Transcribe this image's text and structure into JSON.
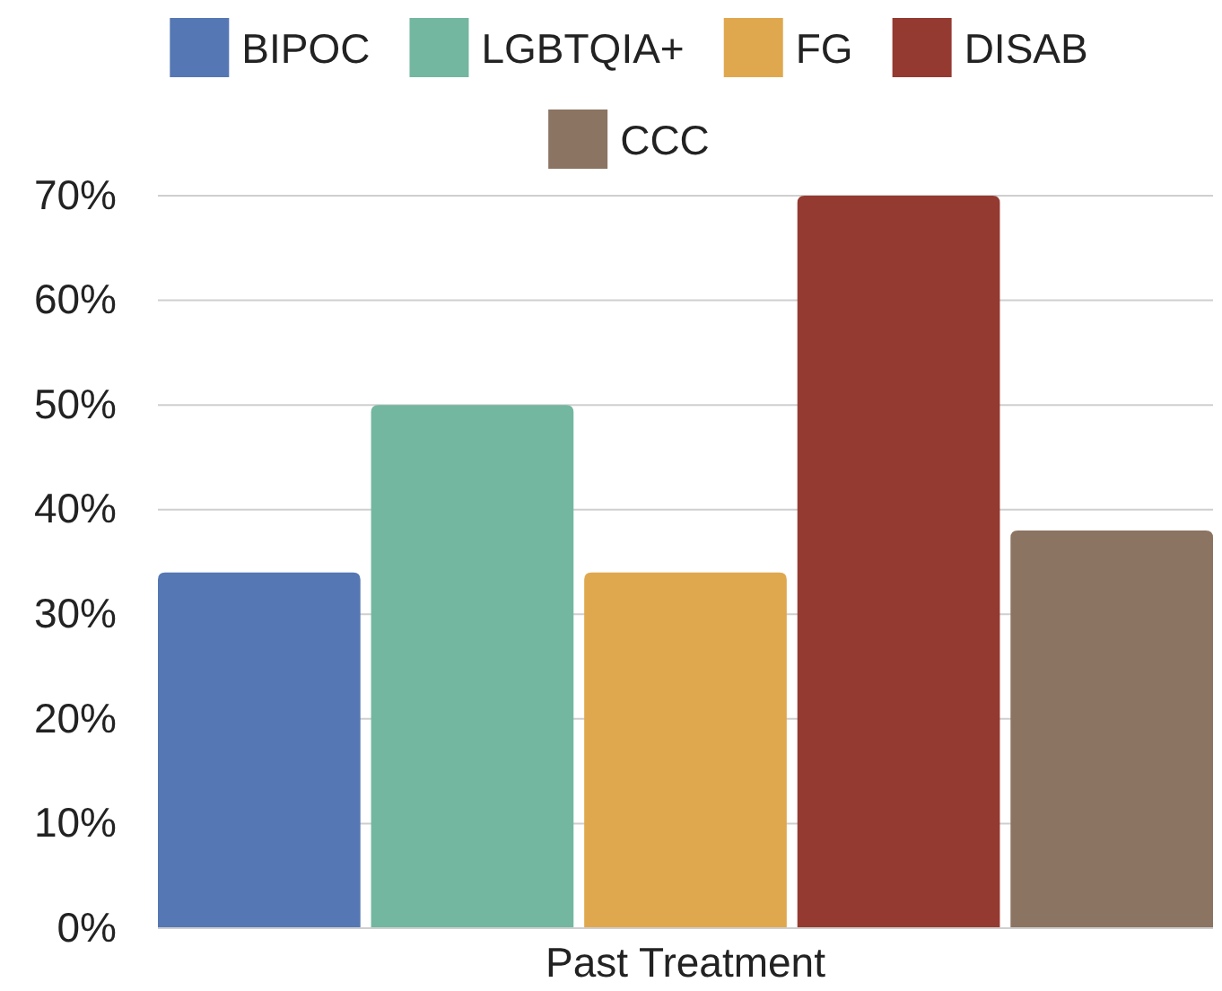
{
  "chart_data": {
    "type": "bar",
    "categories": [
      "Past Treatment"
    ],
    "series": [
      {
        "name": "BIPOC",
        "color": "#5577b3",
        "values": [
          34
        ]
      },
      {
        "name": "LGBTQIA+",
        "color": "#73b7a0",
        "values": [
          50
        ]
      },
      {
        "name": "FG",
        "color": "#e0a84e",
        "values": [
          34
        ]
      },
      {
        "name": "DISAB",
        "color": "#943a31",
        "values": [
          70
        ]
      },
      {
        "name": "CCC",
        "color": "#8b7462",
        "values": [
          38
        ]
      }
    ],
    "ylim": [
      0,
      70
    ],
    "yticks": [
      {
        "value": 0,
        "label": "0%"
      },
      {
        "value": 10,
        "label": "10%"
      },
      {
        "value": 20,
        "label": "20%"
      },
      {
        "value": 30,
        "label": "30%"
      },
      {
        "value": 40,
        "label": "40%"
      },
      {
        "value": 50,
        "label": "50%"
      },
      {
        "value": 60,
        "label": "60%"
      },
      {
        "value": 70,
        "label": "70%"
      }
    ],
    "grid": "y",
    "legend": "top"
  }
}
